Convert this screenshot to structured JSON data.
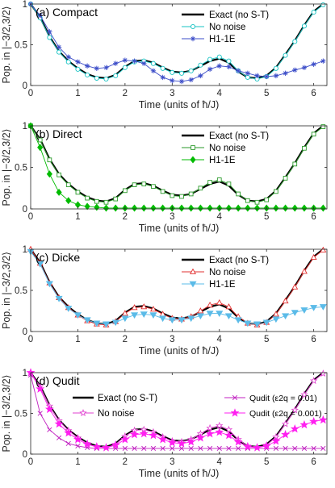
{
  "figure": {
    "ylabel": "Pop. in |−3/2,3/2⟩",
    "xlabel": "Time (units of ħ/J)",
    "xticks": [
      "0",
      "1",
      "2",
      "3",
      "4",
      "5",
      "6"
    ],
    "yticks": [
      "0",
      "0.5",
      "1"
    ]
  },
  "chart_data": [
    {
      "type": "line",
      "title": "(a) Compact",
      "xlabel": "Time (units of ħ/J)",
      "ylabel": "Pop. in |−3/2,3/2⟩",
      "xlim": [
        0,
        6.28
      ],
      "ylim": [
        0,
        1
      ],
      "legend_position": "top-right",
      "series": [
        {
          "name": "Exact (no S-T)",
          "style": "solid",
          "color": "#000000",
          "marker": "none",
          "x": [
            0,
            0.2,
            0.4,
            0.6,
            0.8,
            1.0,
            1.2,
            1.4,
            1.6,
            1.8,
            2.0,
            2.2,
            2.4,
            2.6,
            2.8,
            3.0,
            3.2,
            3.4,
            3.6,
            3.8,
            4.0,
            4.2,
            4.4,
            4.6,
            4.8,
            5.0,
            5.2,
            5.4,
            5.6,
            5.8,
            6.0,
            6.2
          ],
          "y": [
            1.0,
            0.84,
            0.6,
            0.42,
            0.3,
            0.21,
            0.14,
            0.1,
            0.09,
            0.13,
            0.23,
            0.3,
            0.31,
            0.28,
            0.22,
            0.17,
            0.16,
            0.18,
            0.24,
            0.3,
            0.33,
            0.28,
            0.17,
            0.1,
            0.09,
            0.12,
            0.22,
            0.38,
            0.55,
            0.74,
            0.91,
            1.0
          ]
        },
        {
          "name": "No noise",
          "style": "solid",
          "color": "#17c3c3",
          "marker": "open-circle",
          "x": [
            0,
            0.2,
            0.4,
            0.6,
            0.8,
            1.0,
            1.2,
            1.4,
            1.6,
            1.8,
            2.0,
            2.2,
            2.4,
            2.6,
            2.8,
            3.0,
            3.2,
            3.4,
            3.6,
            3.8,
            4.0,
            4.2,
            4.4,
            4.6,
            4.8,
            5.0,
            5.2,
            5.4,
            5.6,
            5.8,
            6.0,
            6.2
          ],
          "y": [
            1.0,
            0.83,
            0.59,
            0.41,
            0.29,
            0.2,
            0.13,
            0.09,
            0.08,
            0.12,
            0.22,
            0.29,
            0.3,
            0.27,
            0.21,
            0.16,
            0.15,
            0.18,
            0.25,
            0.32,
            0.35,
            0.3,
            0.18,
            0.1,
            0.08,
            0.11,
            0.21,
            0.37,
            0.54,
            0.73,
            0.9,
            0.99
          ]
        },
        {
          "name": "H1-1E",
          "style": "solid",
          "color": "#3b4cc8",
          "marker": "asterisk",
          "x": [
            0,
            0.2,
            0.4,
            0.6,
            0.8,
            1.0,
            1.2,
            1.4,
            1.6,
            1.8,
            2.0,
            2.2,
            2.4,
            2.6,
            2.8,
            3.0,
            3.2,
            3.4,
            3.6,
            3.8,
            4.0,
            4.2,
            4.4,
            4.6,
            4.8,
            5.0,
            5.2,
            5.4,
            5.6,
            5.8,
            6.0,
            6.2
          ],
          "y": [
            1.0,
            0.86,
            0.66,
            0.47,
            0.35,
            0.29,
            0.24,
            0.21,
            0.22,
            0.27,
            0.31,
            0.3,
            0.27,
            0.18,
            0.1,
            0.06,
            0.05,
            0.07,
            0.12,
            0.2,
            0.24,
            0.23,
            0.18,
            0.15,
            0.12,
            0.11,
            0.12,
            0.15,
            0.19,
            0.22,
            0.26,
            0.3
          ]
        }
      ]
    },
    {
      "type": "line",
      "title": "(b) Direct",
      "xlabel": "Time (units of ħ/J)",
      "ylabel": "Pop. in |−3/2,3/2⟩",
      "xlim": [
        0,
        6.28
      ],
      "ylim": [
        0,
        1
      ],
      "legend_position": "top-right",
      "series": [
        {
          "name": "Exact (no S-T)",
          "style": "solid",
          "color": "#000000",
          "marker": "none",
          "x": [
            0,
            0.2,
            0.4,
            0.6,
            0.8,
            1.0,
            1.2,
            1.4,
            1.6,
            1.8,
            2.0,
            2.2,
            2.4,
            2.6,
            2.8,
            3.0,
            3.2,
            3.4,
            3.6,
            3.8,
            4.0,
            4.2,
            4.4,
            4.6,
            4.8,
            5.0,
            5.2,
            5.4,
            5.6,
            5.8,
            6.0,
            6.2
          ],
          "y": [
            1.0,
            0.84,
            0.6,
            0.42,
            0.3,
            0.21,
            0.14,
            0.1,
            0.09,
            0.13,
            0.23,
            0.3,
            0.31,
            0.28,
            0.22,
            0.17,
            0.16,
            0.18,
            0.24,
            0.3,
            0.33,
            0.28,
            0.17,
            0.1,
            0.09,
            0.12,
            0.22,
            0.38,
            0.55,
            0.74,
            0.91,
            1.0
          ]
        },
        {
          "name": "No noise",
          "style": "solid",
          "color": "#2a9a2a",
          "marker": "open-square",
          "x": [
            0,
            0.2,
            0.4,
            0.6,
            0.8,
            1.0,
            1.2,
            1.4,
            1.6,
            1.8,
            2.0,
            2.2,
            2.4,
            2.6,
            2.8,
            3.0,
            3.2,
            3.4,
            3.6,
            3.8,
            4.0,
            4.2,
            4.4,
            4.6,
            4.8,
            5.0,
            5.2,
            5.4,
            5.6,
            5.8,
            6.0,
            6.2
          ],
          "y": [
            1.0,
            0.83,
            0.59,
            0.41,
            0.29,
            0.2,
            0.13,
            0.09,
            0.08,
            0.12,
            0.22,
            0.29,
            0.3,
            0.27,
            0.21,
            0.16,
            0.15,
            0.18,
            0.25,
            0.32,
            0.35,
            0.3,
            0.18,
            0.1,
            0.08,
            0.11,
            0.21,
            0.37,
            0.54,
            0.73,
            0.9,
            0.99
          ]
        },
        {
          "name": "H1-1E",
          "style": "solid",
          "color": "#00bb00",
          "marker": "filled-diamond",
          "x": [
            0,
            0.2,
            0.4,
            0.6,
            0.8,
            1.0,
            1.2,
            1.4,
            1.6,
            1.8,
            2.0,
            2.2,
            2.4,
            2.6,
            2.8,
            3.0,
            3.2,
            3.4,
            3.6,
            3.8,
            4.0,
            4.2,
            4.4,
            4.6,
            4.8,
            5.0,
            5.2,
            5.4,
            5.6,
            5.8,
            6.0,
            6.2
          ],
          "y": [
            1.0,
            0.74,
            0.42,
            0.2,
            0.1,
            0.05,
            0.03,
            0.02,
            0.01,
            0.01,
            0.01,
            0.01,
            0.01,
            0.01,
            0.01,
            0.01,
            0.01,
            0.01,
            0.01,
            0.01,
            0.01,
            0.01,
            0.01,
            0.01,
            0.01,
            0.01,
            0.01,
            0.01,
            0.01,
            0.01,
            0.01,
            0.01
          ]
        }
      ]
    },
    {
      "type": "line",
      "title": "(c) Dicke",
      "xlabel": "Time (units of ħ/J)",
      "ylabel": "Pop. in |−3/2,3/2⟩",
      "xlim": [
        0,
        6.28
      ],
      "ylim": [
        0,
        1
      ],
      "legend_position": "top-right",
      "series": [
        {
          "name": "Exact (no S-T)",
          "style": "solid",
          "color": "#000000",
          "marker": "none",
          "x": [
            0,
            0.2,
            0.4,
            0.6,
            0.8,
            1.0,
            1.2,
            1.4,
            1.6,
            1.8,
            2.0,
            2.2,
            2.4,
            2.6,
            2.8,
            3.0,
            3.2,
            3.4,
            3.6,
            3.8,
            4.0,
            4.2,
            4.4,
            4.6,
            4.8,
            5.0,
            5.2,
            5.4,
            5.6,
            5.8,
            6.0,
            6.2
          ],
          "y": [
            1.0,
            0.84,
            0.6,
            0.42,
            0.3,
            0.21,
            0.14,
            0.1,
            0.09,
            0.13,
            0.23,
            0.3,
            0.31,
            0.28,
            0.22,
            0.17,
            0.16,
            0.18,
            0.24,
            0.3,
            0.33,
            0.28,
            0.17,
            0.1,
            0.09,
            0.12,
            0.22,
            0.38,
            0.55,
            0.74,
            0.91,
            1.0
          ]
        },
        {
          "name": "No noise",
          "style": "solid",
          "color": "#e23030",
          "marker": "open-triangle-up",
          "x": [
            0,
            0.2,
            0.4,
            0.6,
            0.8,
            1.0,
            1.2,
            1.4,
            1.6,
            1.8,
            2.0,
            2.2,
            2.4,
            2.6,
            2.8,
            3.0,
            3.2,
            3.4,
            3.6,
            3.8,
            4.0,
            4.2,
            4.4,
            4.6,
            4.8,
            5.0,
            5.2,
            5.4,
            5.6,
            5.8,
            6.0,
            6.2
          ],
          "y": [
            1.0,
            0.83,
            0.59,
            0.41,
            0.29,
            0.2,
            0.13,
            0.09,
            0.08,
            0.12,
            0.22,
            0.29,
            0.3,
            0.27,
            0.21,
            0.16,
            0.15,
            0.18,
            0.25,
            0.32,
            0.35,
            0.3,
            0.18,
            0.1,
            0.08,
            0.11,
            0.21,
            0.37,
            0.54,
            0.73,
            0.9,
            0.99
          ]
        },
        {
          "name": "H1-1E",
          "style": "solid",
          "color": "#5bbbe8",
          "marker": "filled-triangle-down",
          "x": [
            0,
            0.2,
            0.4,
            0.6,
            0.8,
            1.0,
            1.2,
            1.4,
            1.6,
            1.8,
            2.0,
            2.2,
            2.4,
            2.6,
            2.8,
            3.0,
            3.2,
            3.4,
            3.6,
            3.8,
            4.0,
            4.2,
            4.4,
            4.6,
            4.8,
            5.0,
            5.2,
            5.4,
            5.6,
            5.8,
            6.0,
            6.2
          ],
          "y": [
            0.97,
            0.82,
            0.58,
            0.4,
            0.28,
            0.2,
            0.14,
            0.1,
            0.09,
            0.11,
            0.16,
            0.2,
            0.21,
            0.2,
            0.16,
            0.14,
            0.14,
            0.16,
            0.19,
            0.22,
            0.22,
            0.19,
            0.14,
            0.1,
            0.09,
            0.11,
            0.15,
            0.19,
            0.23,
            0.26,
            0.29,
            0.3
          ]
        }
      ]
    },
    {
      "type": "line",
      "title": "(d) Qudit",
      "xlabel": "Time (units of ħ/J)",
      "ylabel": "Pop. in |−3/2,3/2⟩",
      "xlim": [
        0,
        6.28
      ],
      "ylim": [
        0,
        1
      ],
      "legend_position": "top",
      "series": [
        {
          "name": "Exact (no S-T)",
          "style": "solid",
          "color": "#000000",
          "marker": "none",
          "x": [
            0,
            0.2,
            0.4,
            0.6,
            0.8,
            1.0,
            1.2,
            1.4,
            1.6,
            1.8,
            2.0,
            2.2,
            2.4,
            2.6,
            2.8,
            3.0,
            3.2,
            3.4,
            3.6,
            3.8,
            4.0,
            4.2,
            4.4,
            4.6,
            4.8,
            5.0,
            5.2,
            5.4,
            5.6,
            5.8,
            6.0,
            6.2
          ],
          "y": [
            1.0,
            0.84,
            0.6,
            0.42,
            0.3,
            0.21,
            0.14,
            0.1,
            0.09,
            0.13,
            0.23,
            0.3,
            0.31,
            0.28,
            0.22,
            0.17,
            0.16,
            0.18,
            0.24,
            0.3,
            0.33,
            0.28,
            0.17,
            0.1,
            0.09,
            0.12,
            0.22,
            0.38,
            0.55,
            0.74,
            0.91,
            1.0
          ]
        },
        {
          "name": "No noise",
          "style": "solid",
          "color": "#e040d0",
          "marker": "open-star",
          "x": [
            0,
            0.2,
            0.4,
            0.6,
            0.8,
            1.0,
            1.2,
            1.4,
            1.6,
            1.8,
            2.0,
            2.2,
            2.4,
            2.6,
            2.8,
            3.0,
            3.2,
            3.4,
            3.6,
            3.8,
            4.0,
            4.2,
            4.4,
            4.6,
            4.8,
            5.0,
            5.2,
            5.4,
            5.6,
            5.8,
            6.0,
            6.2
          ],
          "y": [
            1.0,
            0.83,
            0.59,
            0.41,
            0.29,
            0.2,
            0.13,
            0.09,
            0.08,
            0.12,
            0.22,
            0.29,
            0.3,
            0.27,
            0.21,
            0.16,
            0.15,
            0.18,
            0.25,
            0.32,
            0.35,
            0.3,
            0.18,
            0.1,
            0.08,
            0.11,
            0.21,
            0.37,
            0.54,
            0.73,
            0.9,
            0.99
          ]
        },
        {
          "name": "Qudit (ε2q = 0.01)",
          "style": "solid",
          "color": "#c020c0",
          "marker": "x",
          "x": [
            0,
            0.2,
            0.4,
            0.6,
            0.8,
            1.0,
            1.2,
            1.4,
            1.6,
            1.8,
            2.0,
            2.2,
            2.4,
            2.6,
            2.8,
            3.0,
            3.2,
            3.4,
            3.6,
            3.8,
            4.0,
            4.2,
            4.4,
            4.6,
            4.8,
            5.0,
            5.2,
            5.4,
            5.6,
            5.8,
            6.0,
            6.2
          ],
          "y": [
            0.97,
            0.5,
            0.3,
            0.2,
            0.13,
            0.1,
            0.08,
            0.07,
            0.07,
            0.07,
            0.07,
            0.07,
            0.07,
            0.07,
            0.07,
            0.07,
            0.07,
            0.07,
            0.07,
            0.07,
            0.07,
            0.07,
            0.07,
            0.07,
            0.07,
            0.07,
            0.07,
            0.07,
            0.07,
            0.07,
            0.07,
            0.07
          ]
        },
        {
          "name": "Qudit (ε2q = 0.001)",
          "style": "solid",
          "color": "#ff1ff0",
          "marker": "filled-star",
          "x": [
            0,
            0.2,
            0.4,
            0.6,
            0.8,
            1.0,
            1.2,
            1.4,
            1.6,
            1.8,
            2.0,
            2.2,
            2.4,
            2.6,
            2.8,
            3.0,
            3.2,
            3.4,
            3.6,
            3.8,
            4.0,
            4.2,
            4.4,
            4.6,
            4.8,
            5.0,
            5.2,
            5.4,
            5.6,
            5.8,
            6.0,
            6.2
          ],
          "y": [
            1.0,
            0.8,
            0.55,
            0.37,
            0.26,
            0.18,
            0.12,
            0.09,
            0.08,
            0.11,
            0.18,
            0.24,
            0.25,
            0.23,
            0.18,
            0.14,
            0.13,
            0.15,
            0.2,
            0.25,
            0.27,
            0.23,
            0.15,
            0.09,
            0.08,
            0.1,
            0.16,
            0.24,
            0.31,
            0.36,
            0.4,
            0.42
          ]
        }
      ]
    }
  ]
}
